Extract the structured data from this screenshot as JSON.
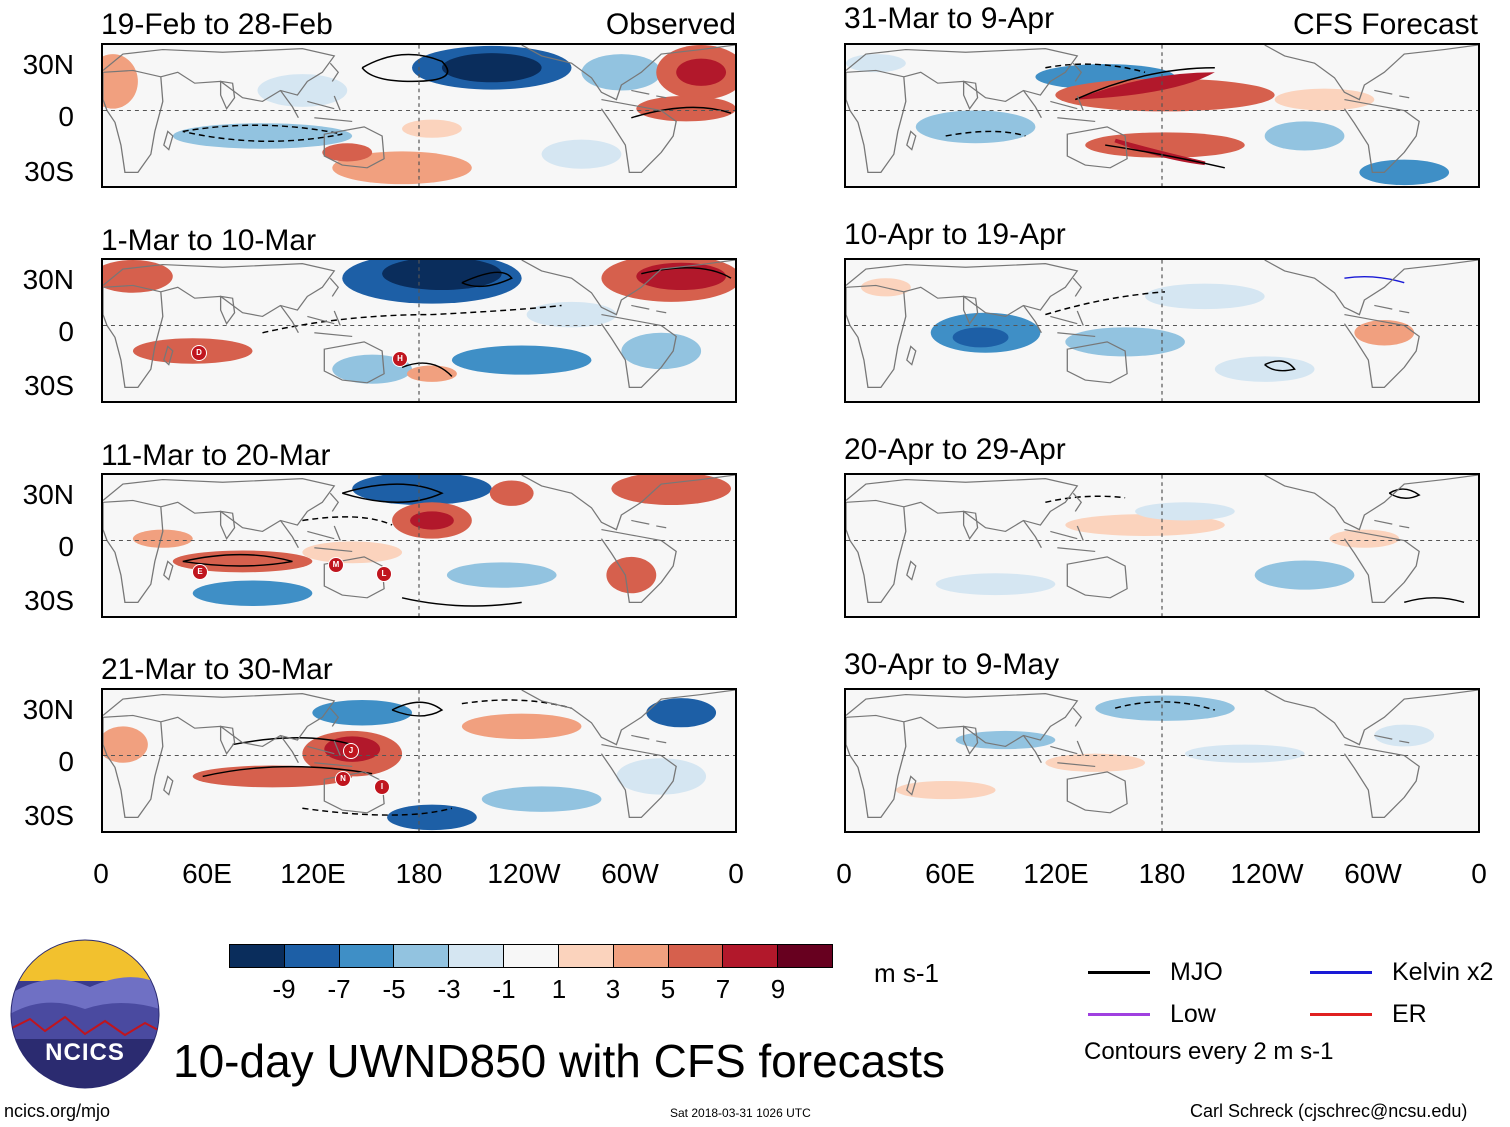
{
  "figure_title": "10-day UWND850 with CFS forecasts",
  "logo_text": "NCICS",
  "footer": {
    "left": "ncics.org/mjo",
    "center": "Sat 2018-03-31 1026 UTC",
    "right": "Carl Schreck (cjschrec@ncsu.edu)"
  },
  "column_tags": {
    "observed": "Observed",
    "forecast": "CFS Forecast"
  },
  "panels": {
    "obs1": "19-Feb to 28-Feb",
    "obs2": "1-Mar to 10-Mar",
    "obs3": "11-Mar to 20-Mar",
    "obs4": "21-Mar to 30-Mar",
    "fc1": "31-Mar to 9-Apr",
    "fc2": "10-Apr to 19-Apr",
    "fc3": "20-Apr to 29-Apr",
    "fc4": "30-Apr to 9-May"
  },
  "lat_labels": {
    "n": "30N",
    "eq": "0",
    "s": "30S"
  },
  "lon_labels": {
    "l0": "0",
    "l1": "60E",
    "l2": "120E",
    "l3": "180",
    "l4": "120W",
    "l5": "60W",
    "l6": "0"
  },
  "colorbar": {
    "unit": "m s-1",
    "labels": {
      "a": "-9",
      "b": "-7",
      "c": "-5",
      "d": "-3",
      "e": "-1",
      "f": "1",
      "g": "3",
      "h": "5",
      "i": "7",
      "j": "9"
    },
    "colors": [
      "#0a2d5c",
      "#1d5fa6",
      "#3f8fc6",
      "#92c3e0",
      "#d5e6f2",
      "#f7f7f7",
      "#fbd3bd",
      "#f1a07f",
      "#d6604d",
      "#b2182b",
      "#67001f"
    ]
  },
  "legend": {
    "mjo": "MJO",
    "kelvin": "Kelvin x2",
    "low": "Low",
    "er": "ER",
    "contours": "Contours every 2 m s-1",
    "colors": {
      "mjo": "#000000",
      "kelvin": "#1a1ad6",
      "low": "#a040e0",
      "er": "#e02020"
    }
  },
  "tracks": {
    "d": "D",
    "h": "H",
    "e": "E",
    "m": "M",
    "l": "L",
    "j": "J",
    "n": "N",
    "i": "I"
  }
}
